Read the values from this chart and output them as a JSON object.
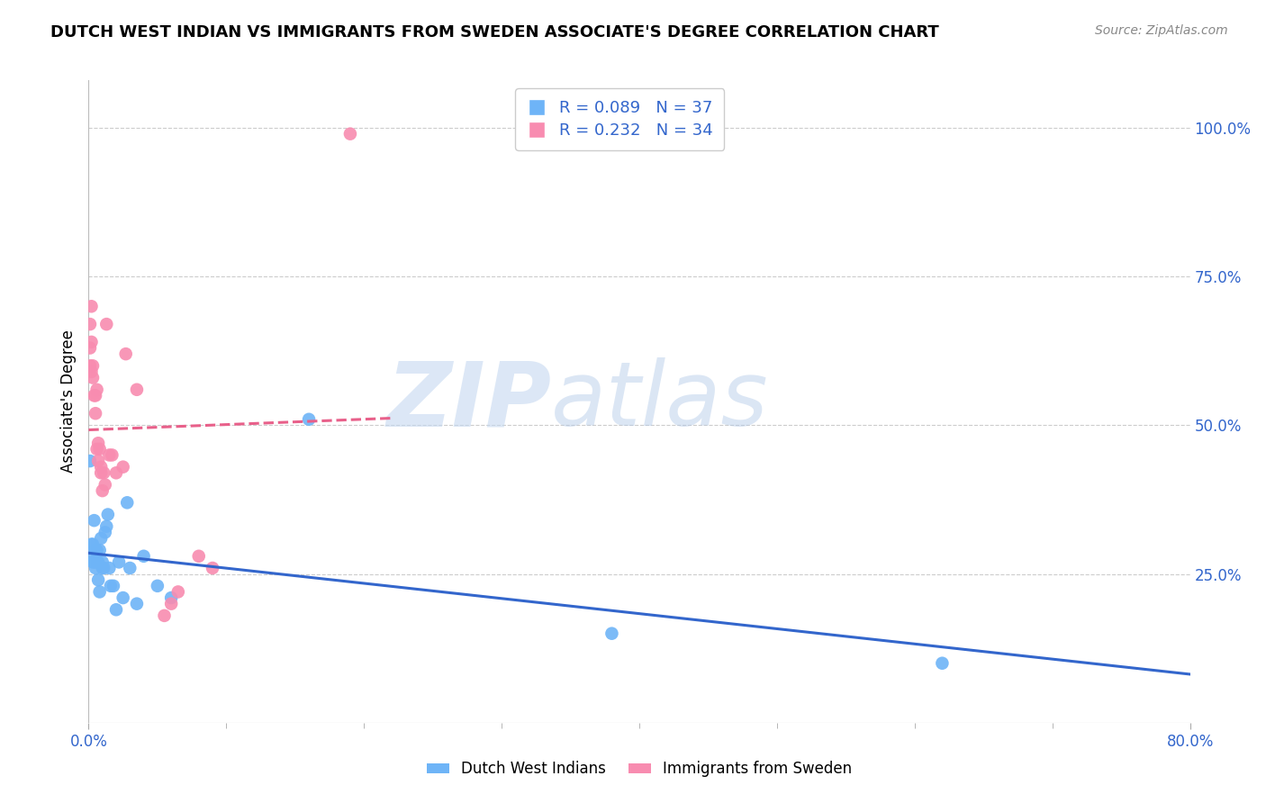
{
  "title": "DUTCH WEST INDIAN VS IMMIGRANTS FROM SWEDEN ASSOCIATE'S DEGREE CORRELATION CHART",
  "source": "Source: ZipAtlas.com",
  "ylabel": "Associate's Degree",
  "right_yticks": [
    "100.0%",
    "75.0%",
    "50.0%",
    "25.0%"
  ],
  "right_ytick_vals": [
    1.0,
    0.75,
    0.5,
    0.25
  ],
  "legend_label1": "Dutch West Indians",
  "legend_label2": "Immigrants from Sweden",
  "blue_color": "#6EB4F7",
  "pink_color": "#F88CB0",
  "trendline_blue": "#3366CC",
  "trendline_pink": "#E8608A",
  "watermark_zip": "ZIP",
  "watermark_atlas": "atlas",
  "blue_scatter_x": [
    0.001,
    0.002,
    0.002,
    0.003,
    0.003,
    0.004,
    0.004,
    0.005,
    0.005,
    0.006,
    0.006,
    0.007,
    0.007,
    0.008,
    0.008,
    0.009,
    0.01,
    0.01,
    0.011,
    0.012,
    0.013,
    0.014,
    0.015,
    0.016,
    0.018,
    0.02,
    0.022,
    0.025,
    0.028,
    0.03,
    0.035,
    0.04,
    0.05,
    0.06,
    0.16,
    0.38,
    0.62
  ],
  "blue_scatter_y": [
    0.44,
    0.28,
    0.3,
    0.27,
    0.3,
    0.27,
    0.34,
    0.26,
    0.29,
    0.27,
    0.29,
    0.27,
    0.24,
    0.22,
    0.29,
    0.31,
    0.27,
    0.26,
    0.26,
    0.32,
    0.33,
    0.35,
    0.26,
    0.23,
    0.23,
    0.19,
    0.27,
    0.21,
    0.37,
    0.26,
    0.2,
    0.28,
    0.23,
    0.21,
    0.51,
    0.15,
    0.1
  ],
  "pink_scatter_x": [
    0.001,
    0.001,
    0.001,
    0.002,
    0.002,
    0.002,
    0.003,
    0.003,
    0.004,
    0.005,
    0.005,
    0.006,
    0.006,
    0.007,
    0.007,
    0.008,
    0.009,
    0.009,
    0.01,
    0.011,
    0.012,
    0.013,
    0.015,
    0.017,
    0.02,
    0.025,
    0.027,
    0.035,
    0.055,
    0.06,
    0.065,
    0.08,
    0.09,
    0.19
  ],
  "pink_scatter_y": [
    0.6,
    0.63,
    0.67,
    0.59,
    0.64,
    0.7,
    0.6,
    0.58,
    0.55,
    0.52,
    0.55,
    0.56,
    0.46,
    0.47,
    0.44,
    0.46,
    0.42,
    0.43,
    0.39,
    0.42,
    0.4,
    0.67,
    0.45,
    0.45,
    0.42,
    0.43,
    0.62,
    0.56,
    0.18,
    0.2,
    0.22,
    0.28,
    0.26,
    0.99
  ],
  "xmin": 0.0,
  "xmax": 0.8,
  "ymin": 0.0,
  "ymax": 1.08,
  "xtick_left_label": "0.0%",
  "xtick_right_label": "80.0%"
}
